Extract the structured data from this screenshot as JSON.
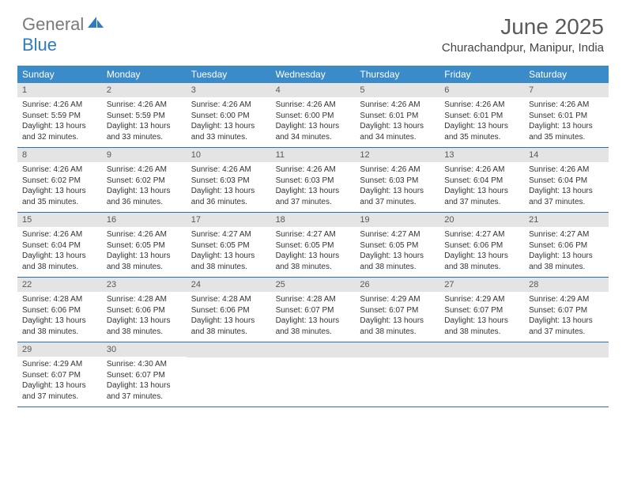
{
  "logo": {
    "text_gray": "General",
    "text_blue": "Blue",
    "icon_color": "#2f7bbf"
  },
  "title": "June 2025",
  "location": "Churachandpur, Manipur, India",
  "colors": {
    "header_bg": "#3b8bc8",
    "header_text": "#ffffff",
    "daynum_bg": "#e4e4e4",
    "daynum_text": "#585858",
    "body_text": "#333333",
    "row_border": "#2f6fa8"
  },
  "weekdays": [
    "Sunday",
    "Monday",
    "Tuesday",
    "Wednesday",
    "Thursday",
    "Friday",
    "Saturday"
  ],
  "weeks": [
    [
      {
        "n": "1",
        "sr": "4:26 AM",
        "ss": "5:59 PM",
        "dl": "13 hours and 32 minutes."
      },
      {
        "n": "2",
        "sr": "4:26 AM",
        "ss": "5:59 PM",
        "dl": "13 hours and 33 minutes."
      },
      {
        "n": "3",
        "sr": "4:26 AM",
        "ss": "6:00 PM",
        "dl": "13 hours and 33 minutes."
      },
      {
        "n": "4",
        "sr": "4:26 AM",
        "ss": "6:00 PM",
        "dl": "13 hours and 34 minutes."
      },
      {
        "n": "5",
        "sr": "4:26 AM",
        "ss": "6:01 PM",
        "dl": "13 hours and 34 minutes."
      },
      {
        "n": "6",
        "sr": "4:26 AM",
        "ss": "6:01 PM",
        "dl": "13 hours and 35 minutes."
      },
      {
        "n": "7",
        "sr": "4:26 AM",
        "ss": "6:01 PM",
        "dl": "13 hours and 35 minutes."
      }
    ],
    [
      {
        "n": "8",
        "sr": "4:26 AM",
        "ss": "6:02 PM",
        "dl": "13 hours and 35 minutes."
      },
      {
        "n": "9",
        "sr": "4:26 AM",
        "ss": "6:02 PM",
        "dl": "13 hours and 36 minutes."
      },
      {
        "n": "10",
        "sr": "4:26 AM",
        "ss": "6:03 PM",
        "dl": "13 hours and 36 minutes."
      },
      {
        "n": "11",
        "sr": "4:26 AM",
        "ss": "6:03 PM",
        "dl": "13 hours and 37 minutes."
      },
      {
        "n": "12",
        "sr": "4:26 AM",
        "ss": "6:03 PM",
        "dl": "13 hours and 37 minutes."
      },
      {
        "n": "13",
        "sr": "4:26 AM",
        "ss": "6:04 PM",
        "dl": "13 hours and 37 minutes."
      },
      {
        "n": "14",
        "sr": "4:26 AM",
        "ss": "6:04 PM",
        "dl": "13 hours and 37 minutes."
      }
    ],
    [
      {
        "n": "15",
        "sr": "4:26 AM",
        "ss": "6:04 PM",
        "dl": "13 hours and 38 minutes."
      },
      {
        "n": "16",
        "sr": "4:26 AM",
        "ss": "6:05 PM",
        "dl": "13 hours and 38 minutes."
      },
      {
        "n": "17",
        "sr": "4:27 AM",
        "ss": "6:05 PM",
        "dl": "13 hours and 38 minutes."
      },
      {
        "n": "18",
        "sr": "4:27 AM",
        "ss": "6:05 PM",
        "dl": "13 hours and 38 minutes."
      },
      {
        "n": "19",
        "sr": "4:27 AM",
        "ss": "6:05 PM",
        "dl": "13 hours and 38 minutes."
      },
      {
        "n": "20",
        "sr": "4:27 AM",
        "ss": "6:06 PM",
        "dl": "13 hours and 38 minutes."
      },
      {
        "n": "21",
        "sr": "4:27 AM",
        "ss": "6:06 PM",
        "dl": "13 hours and 38 minutes."
      }
    ],
    [
      {
        "n": "22",
        "sr": "4:28 AM",
        "ss": "6:06 PM",
        "dl": "13 hours and 38 minutes."
      },
      {
        "n": "23",
        "sr": "4:28 AM",
        "ss": "6:06 PM",
        "dl": "13 hours and 38 minutes."
      },
      {
        "n": "24",
        "sr": "4:28 AM",
        "ss": "6:06 PM",
        "dl": "13 hours and 38 minutes."
      },
      {
        "n": "25",
        "sr": "4:28 AM",
        "ss": "6:07 PM",
        "dl": "13 hours and 38 minutes."
      },
      {
        "n": "26",
        "sr": "4:29 AM",
        "ss": "6:07 PM",
        "dl": "13 hours and 38 minutes."
      },
      {
        "n": "27",
        "sr": "4:29 AM",
        "ss": "6:07 PM",
        "dl": "13 hours and 38 minutes."
      },
      {
        "n": "28",
        "sr": "4:29 AM",
        "ss": "6:07 PM",
        "dl": "13 hours and 37 minutes."
      }
    ],
    [
      {
        "n": "29",
        "sr": "4:29 AM",
        "ss": "6:07 PM",
        "dl": "13 hours and 37 minutes."
      },
      {
        "n": "30",
        "sr": "4:30 AM",
        "ss": "6:07 PM",
        "dl": "13 hours and 37 minutes."
      },
      null,
      null,
      null,
      null,
      null
    ]
  ],
  "labels": {
    "sunrise": "Sunrise:",
    "sunset": "Sunset:",
    "daylight": "Daylight:"
  }
}
